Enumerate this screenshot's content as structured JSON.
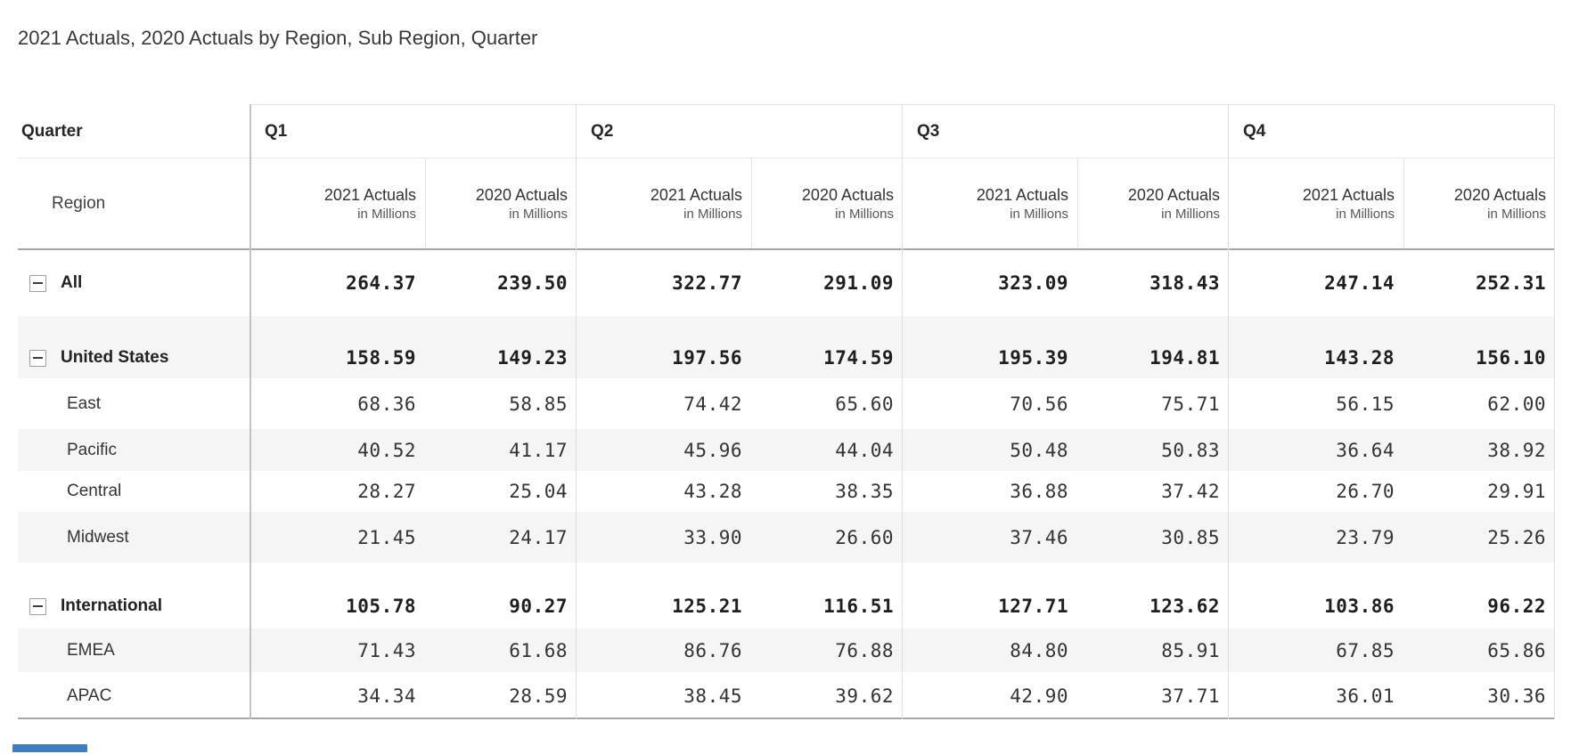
{
  "title": "2021 Actuals, 2020 Actuals by Region, Sub Region, Quarter",
  "colors": {
    "scrollbar_blue": "#3e7cc0",
    "row_stripe": "#f5f5f5",
    "strong_divider": "#a6a6a6",
    "light_divider": "#dedede"
  },
  "table": {
    "corner_label": "Quarter",
    "row_dim_label": "Region",
    "quarters": [
      "Q1",
      "Q2",
      "Q3",
      "Q4"
    ],
    "measures": [
      {
        "year_label": "2021 Actuals",
        "unit_label": "in Millions"
      },
      {
        "year_label": "2020 Actuals",
        "unit_label": "in Millions"
      }
    ],
    "rows": [
      {
        "label": "All",
        "level": 0,
        "bold": true,
        "expandable": true,
        "values": [
          "264.37",
          "239.50",
          "322.77",
          "291.09",
          "323.09",
          "318.43",
          "247.14",
          "252.31"
        ]
      },
      {
        "label": "United States",
        "level": 0,
        "bold": true,
        "expandable": true,
        "values": [
          "158.59",
          "149.23",
          "197.56",
          "174.59",
          "195.39",
          "194.81",
          "143.28",
          "156.10"
        ]
      },
      {
        "label": "East",
        "level": 1,
        "bold": false,
        "expandable": false,
        "values": [
          "68.36",
          "58.85",
          "74.42",
          "65.60",
          "70.56",
          "75.71",
          "56.15",
          "62.00"
        ]
      },
      {
        "label": "Pacific",
        "level": 1,
        "bold": false,
        "expandable": false,
        "values": [
          "40.52",
          "41.17",
          "45.96",
          "44.04",
          "50.48",
          "50.83",
          "36.64",
          "38.92"
        ]
      },
      {
        "label": "Central",
        "level": 1,
        "bold": false,
        "expandable": false,
        "values": [
          "28.27",
          "25.04",
          "43.28",
          "38.35",
          "36.88",
          "37.42",
          "26.70",
          "29.91"
        ]
      },
      {
        "label": "Midwest",
        "level": 1,
        "bold": false,
        "expandable": false,
        "values": [
          "21.45",
          "24.17",
          "33.90",
          "26.60",
          "37.46",
          "30.85",
          "23.79",
          "25.26"
        ]
      },
      {
        "label": "International",
        "level": 0,
        "bold": true,
        "expandable": true,
        "values": [
          "105.78",
          "90.27",
          "125.21",
          "116.51",
          "127.71",
          "123.62",
          "103.86",
          "96.22"
        ]
      },
      {
        "label": "EMEA",
        "level": 1,
        "bold": false,
        "expandable": false,
        "values": [
          "71.43",
          "61.68",
          "86.76",
          "76.88",
          "84.80",
          "85.91",
          "67.85",
          "65.86"
        ]
      },
      {
        "label": "APAC",
        "level": 1,
        "bold": false,
        "expandable": false,
        "values": [
          "34.34",
          "28.59",
          "38.45",
          "39.62",
          "42.90",
          "37.71",
          "36.01",
          "30.36"
        ]
      }
    ]
  }
}
